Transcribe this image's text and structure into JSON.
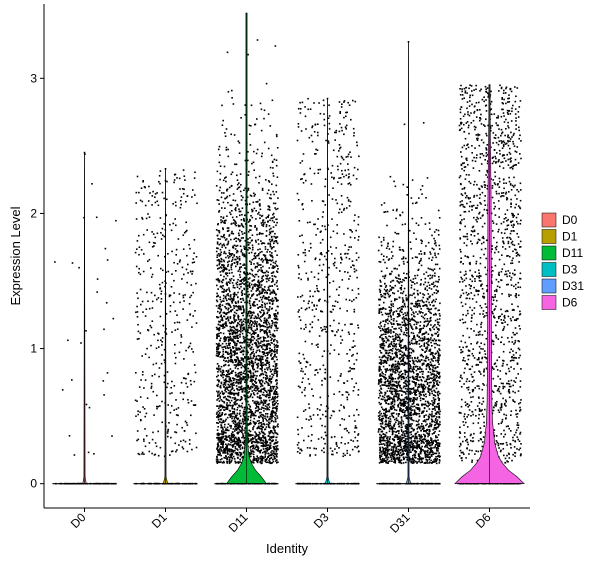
{
  "chart_data": {
    "type": "violin",
    "title": "",
    "xlabel": "Identity",
    "ylabel": "Expression Level",
    "ylim": [
      -0.18,
      3.55
    ],
    "yticks": [
      0,
      1,
      2,
      3
    ],
    "grid": false,
    "legend_position": "right",
    "categories": [
      "D0",
      "D1",
      "D11",
      "D3",
      "D31",
      "D6"
    ],
    "colors": {
      "D0": "#F8766D",
      "D1": "#B79F00",
      "D11": "#00BA38",
      "D3": "#00BFC4",
      "D31": "#619CFF",
      "D6": "#F564E3"
    },
    "series": [
      {
        "name": "D0",
        "max": 2.45,
        "nonzero_points": 30,
        "violin_width": 0.05,
        "density": [
          [
            0,
            1.0
          ],
          [
            0.05,
            0.0
          ]
        ]
      },
      {
        "name": "D1",
        "max": 2.33,
        "nonzero_points": 420,
        "violin_width": 0.06,
        "density": [
          [
            0,
            1.0
          ],
          [
            0.05,
            0.0
          ]
        ]
      },
      {
        "name": "D11",
        "max": 3.48,
        "nonzero_points": 3600,
        "violin_width": 0.55,
        "density": [
          [
            0,
            1.0
          ],
          [
            0.05,
            0.75
          ],
          [
            0.1,
            0.45
          ],
          [
            0.15,
            0.25
          ],
          [
            0.2,
            0.13
          ],
          [
            0.3,
            0.06
          ],
          [
            0.5,
            0.035
          ],
          [
            0.8,
            0.03
          ],
          [
            1.2,
            0.028
          ],
          [
            1.6,
            0.025
          ],
          [
            2.0,
            0.02
          ],
          [
            2.3,
            0.015
          ],
          [
            2.7,
            0.01
          ],
          [
            3.1,
            0.006
          ],
          [
            3.48,
            0.0
          ]
        ]
      },
      {
        "name": "D3",
        "max": 2.85,
        "nonzero_points": 600,
        "violin_width": 0.06,
        "density": [
          [
            0,
            1.0
          ],
          [
            0.05,
            0.0
          ]
        ]
      },
      {
        "name": "D31",
        "max": 3.27,
        "nonzero_points": 2700,
        "violin_width": 0.06,
        "density": [
          [
            0,
            1.0
          ],
          [
            0.05,
            0.0
          ]
        ]
      },
      {
        "name": "D6",
        "max": 2.95,
        "nonzero_points": 1400,
        "violin_width": 0.95,
        "density": [
          [
            0,
            1.0
          ],
          [
            0.05,
            0.8
          ],
          [
            0.1,
            0.55
          ],
          [
            0.15,
            0.38
          ],
          [
            0.2,
            0.26
          ],
          [
            0.3,
            0.15
          ],
          [
            0.45,
            0.09
          ],
          [
            0.6,
            0.07
          ],
          [
            0.9,
            0.06
          ],
          [
            1.3,
            0.055
          ],
          [
            1.7,
            0.05
          ],
          [
            2.1,
            0.045
          ],
          [
            2.4,
            0.035
          ],
          [
            2.7,
            0.02
          ],
          [
            2.95,
            0.0
          ]
        ]
      }
    ]
  }
}
